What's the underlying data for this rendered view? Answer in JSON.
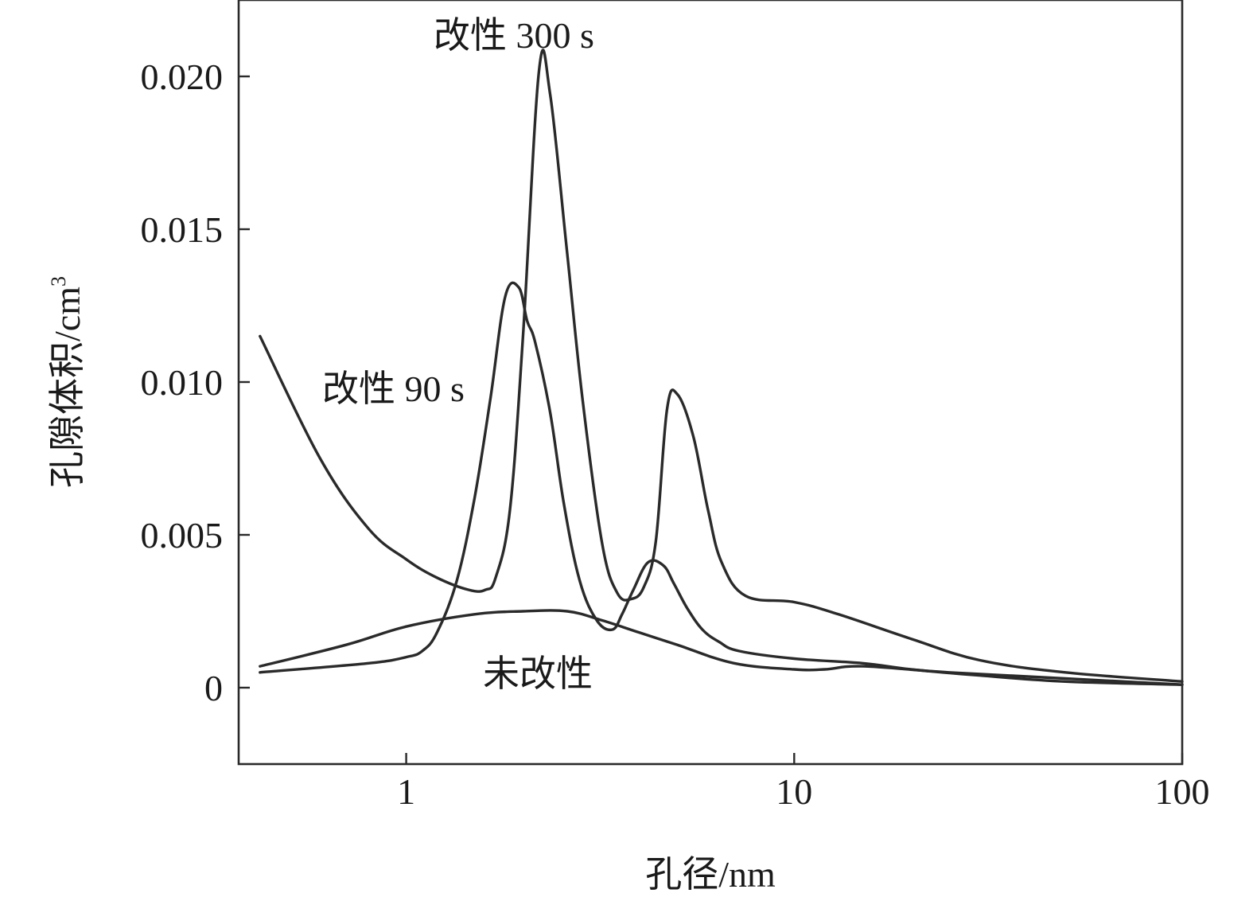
{
  "chart_data": {
    "type": "line",
    "x_scale": "log",
    "xlim": [
      0.37,
      100
    ],
    "ylim": [
      -0.0025,
      0.0225
    ],
    "xticks": [
      1,
      10,
      100
    ],
    "xtick_labels": [
      "1",
      "10",
      "100"
    ],
    "yticks": [
      0,
      0.005,
      0.01,
      0.015,
      0.02
    ],
    "ytick_labels": [
      "0",
      "0.005",
      "0.010",
      "0.015",
      "0.020"
    ],
    "xlabel": "孔径/nm",
    "ylabel": "孔隙体积/cm",
    "ylabel_sup": "3",
    "grid": false,
    "legend": "none",
    "annotations": [
      "改性 300 s",
      "改性 90 s",
      "未改性"
    ],
    "series": [
      {
        "name": "改性 300 s",
        "x": [
          0.42,
          0.8,
          1.0,
          1.1,
          1.2,
          1.35,
          1.5,
          1.65,
          1.8,
          1.95,
          2.05,
          2.15,
          2.35,
          2.55,
          2.8,
          3.1,
          3.4,
          3.6,
          3.85,
          4.2,
          4.6,
          4.9,
          5.3,
          5.8,
          6.4,
          7.2,
          10,
          15,
          20,
          30,
          50,
          100
        ],
        "y": [
          0.0005,
          0.0008,
          0.001,
          0.0012,
          0.0018,
          0.0035,
          0.0062,
          0.0095,
          0.0128,
          0.0131,
          0.012,
          0.0113,
          0.009,
          0.006,
          0.0035,
          0.0022,
          0.0019,
          0.0024,
          0.0032,
          0.0041,
          0.004,
          0.0034,
          0.0026,
          0.0019,
          0.0015,
          0.0012,
          0.00095,
          0.0008,
          0.0006,
          0.0004,
          0.0002,
          0.0001
        ]
      },
      {
        "name": "改性 90 s",
        "x": [
          0.42,
          0.6,
          0.8,
          1.0,
          1.2,
          1.45,
          1.6,
          1.7,
          1.85,
          2.0,
          2.2,
          2.35,
          2.6,
          2.85,
          3.2,
          3.5,
          3.8,
          4.1,
          4.4,
          4.7,
          5.0,
          5.5,
          6.0,
          6.5,
          7.5,
          10,
          13,
          20,
          30,
          50,
          100
        ],
        "y": [
          0.0115,
          0.0075,
          0.0052,
          0.0042,
          0.0036,
          0.0032,
          0.0032,
          0.0036,
          0.0058,
          0.0115,
          0.0202,
          0.0194,
          0.0142,
          0.0094,
          0.0047,
          0.0031,
          0.0029,
          0.0033,
          0.0048,
          0.0091,
          0.0096,
          0.0082,
          0.0058,
          0.0041,
          0.003,
          0.0028,
          0.0024,
          0.0016,
          0.0009,
          0.0005,
          0.0002
        ]
      },
      {
        "name": "未改性",
        "x": [
          0.42,
          0.7,
          1.0,
          1.5,
          2.0,
          2.6,
          3.2,
          4.0,
          5.0,
          7.0,
          10,
          12,
          15,
          25,
          50,
          100
        ],
        "y": [
          0.0007,
          0.0014,
          0.002,
          0.0024,
          0.0025,
          0.0025,
          0.0022,
          0.0018,
          0.0014,
          0.0008,
          0.0006,
          0.0006,
          0.0007,
          0.0005,
          0.0003,
          0.0001
        ]
      }
    ]
  }
}
